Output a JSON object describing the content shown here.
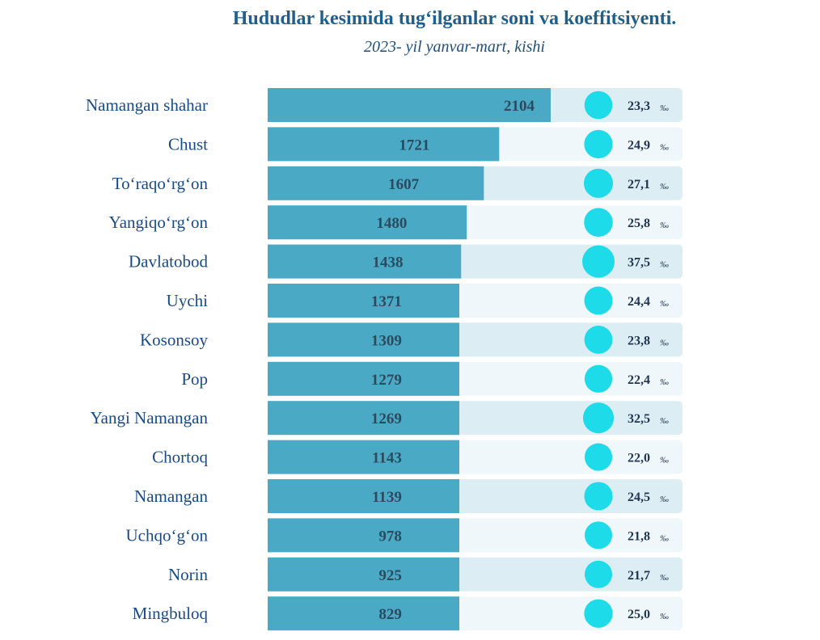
{
  "title": "Hududlar kesimida tug‘ilganlar soni va koeffitsiyenti.",
  "subtitle": "2023- yil yanvar-mart, kishi",
  "chart_data": {
    "type": "bar",
    "orientation": "horizontal",
    "categories": [
      "Namangan shahar",
      "Chust",
      "To‘raqo‘rg‘on",
      "Yangiqo‘rg‘on",
      "Davlatobod",
      "Uychi",
      "Kosonsoy",
      "Pop",
      "Yangi Namangan",
      "Chortoq",
      "Namangan",
      "Uchqo‘g‘on",
      "Norin",
      "Mingbuloq"
    ],
    "series": [
      {
        "values": [
          2104,
          1721,
          1607,
          1480,
          1438,
          1371,
          1309,
          1279,
          1269,
          1143,
          1139,
          978,
          925,
          829
        ]
      },
      {
        "values": [
          23.3,
          24.9,
          27.1,
          25.8,
          37.5,
          24.4,
          23.8,
          22.4,
          32.5,
          22.0,
          24.5,
          21.8,
          21.7,
          25.0
        ],
        "value_labels": [
          "23,3",
          "24,9",
          "27,1",
          "25,8",
          "37,5",
          "24,4",
          "23,8",
          "22,4",
          "32,5",
          "22,0",
          "24,5",
          "21,8",
          "21,7",
          "25,0"
        ],
        "unit": "‰"
      }
    ],
    "grid": false,
    "legend": "none",
    "colors": {
      "bar": "#4aaac6",
      "circle": "#1ddbe8",
      "row_light": "#f0f7fa",
      "row_dark": "#dceef4",
      "text": "#1a4a85"
    }
  }
}
